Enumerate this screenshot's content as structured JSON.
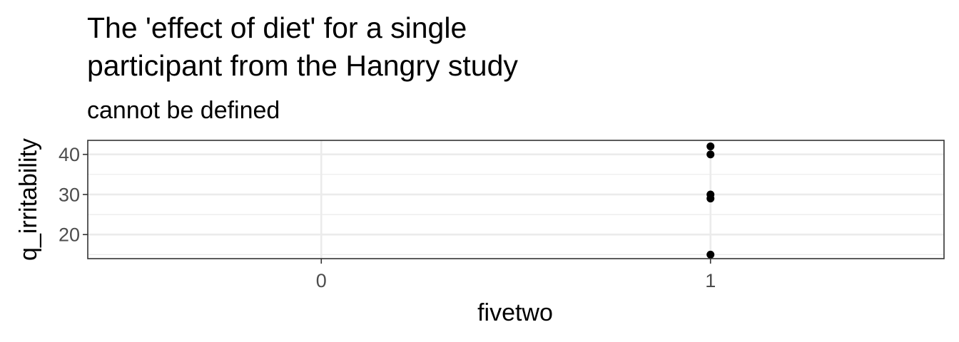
{
  "chart_data": {
    "type": "scatter",
    "title_lines": [
      "The 'effect of diet' for a single",
      "participant from the Hangry study"
    ],
    "subtitle": "cannot be defined",
    "xlabel": "fivetwo",
    "ylabel": "q_irritability",
    "x_categories": [
      "0",
      "1"
    ],
    "ylim": [
      14,
      43.5
    ],
    "y_ticks": [
      20,
      30,
      40
    ],
    "y_tick_labels": [
      "20",
      "30",
      "40"
    ],
    "grid": true,
    "points": [
      {
        "x": "1",
        "y": 42
      },
      {
        "x": "1",
        "y": 40
      },
      {
        "x": "1",
        "y": 30
      },
      {
        "x": "1",
        "y": 29
      },
      {
        "x": "1",
        "y": 15
      }
    ],
    "colors": {
      "point": "#000000",
      "grid": "#ebebeb",
      "panel_border": "#333333",
      "tick_label": "#4d4d4d"
    }
  }
}
